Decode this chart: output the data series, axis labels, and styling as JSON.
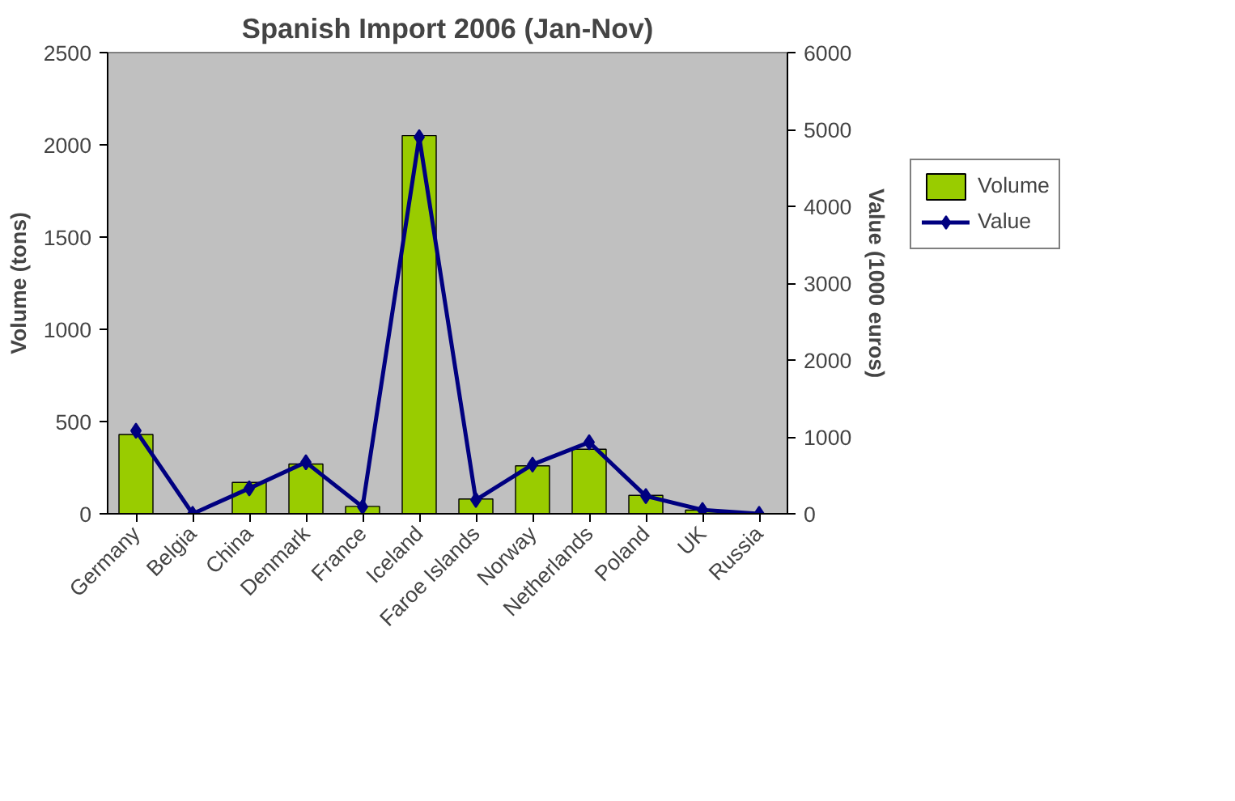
{
  "chart_data": {
    "type": "bar",
    "title": "Spanish Import 2006 (Jan-Nov)",
    "ylabel": "Volume (tons)",
    "y2label": "Value (1000 euros)",
    "categories": [
      "Germany",
      "Belgia",
      "China",
      "Denmark",
      "France",
      "Iceland",
      "Faroe Islands",
      "Norway",
      "Netherlands",
      "Poland",
      "UK",
      "Russia"
    ],
    "series": [
      {
        "name": "Volume",
        "color": "#99cc00",
        "values": [
          430,
          0,
          170,
          270,
          40,
          2050,
          80,
          260,
          350,
          100,
          20,
          0
        ]
      },
      {
        "name": "Value",
        "type": "line",
        "axis": "y2",
        "color": "#000080",
        "marker": "diamond",
        "values": [
          1080,
          0,
          330,
          670,
          90,
          4900,
          180,
          640,
          930,
          230,
          50,
          0
        ]
      }
    ],
    "ylim": [
      0,
      2500
    ],
    "yticks": [
      0,
      500,
      1000,
      1500,
      2000,
      2500
    ],
    "y2lim": [
      0,
      6000
    ],
    "y2ticks": [
      0,
      1000,
      2000,
      3000,
      4000,
      5000,
      6000
    ],
    "grid": false,
    "legend": "right"
  }
}
